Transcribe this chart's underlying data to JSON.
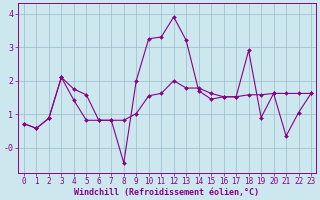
{
  "title": "",
  "xlabel": "Windchill (Refroidissement éolien,°C)",
  "bg_color": "#cce8ee",
  "line_color": "#880088",
  "grid_color": "#99bbcc",
  "xlim_min": -0.5,
  "xlim_max": 23.4,
  "ylim_min": -0.75,
  "ylim_max": 4.3,
  "yticks": [
    4,
    3,
    2,
    1,
    0
  ],
  "ytick_labels": [
    "4",
    "3",
    "2",
    "1",
    "-0"
  ],
  "xticks": [
    0,
    1,
    2,
    3,
    4,
    5,
    6,
    7,
    8,
    9,
    10,
    11,
    12,
    13,
    14,
    15,
    16,
    17,
    18,
    19,
    20,
    21,
    22,
    23
  ],
  "series1_x": [
    0,
    1,
    2,
    3,
    4,
    5,
    6,
    7,
    8,
    9,
    10,
    11,
    12,
    13,
    14,
    15,
    16,
    17,
    18,
    19,
    20,
    21,
    22,
    23
  ],
  "series1_y": [
    0.72,
    0.58,
    0.88,
    2.1,
    1.42,
    0.82,
    0.82,
    0.82,
    0.82,
    1.02,
    1.55,
    1.62,
    2.0,
    1.78,
    1.78,
    1.62,
    1.52,
    1.52,
    1.58,
    1.58,
    1.62,
    1.62,
    1.62,
    1.62
  ],
  "series2_x": [
    0,
    1,
    2,
    3,
    4,
    5,
    6,
    7,
    8,
    9,
    10,
    11,
    12,
    13,
    14,
    15,
    16,
    17,
    18,
    19,
    20,
    21,
    22,
    23
  ],
  "series2_y": [
    0.72,
    0.58,
    0.88,
    2.1,
    1.75,
    1.58,
    0.82,
    0.82,
    -0.45,
    2.0,
    3.25,
    3.3,
    3.9,
    3.2,
    1.7,
    1.45,
    1.52,
    1.52,
    2.9,
    0.9,
    1.62,
    0.35,
    1.05,
    1.62
  ],
  "font_family": "monospace",
  "tick_fontsize": 5.5,
  "xlabel_fontsize": 6.0
}
